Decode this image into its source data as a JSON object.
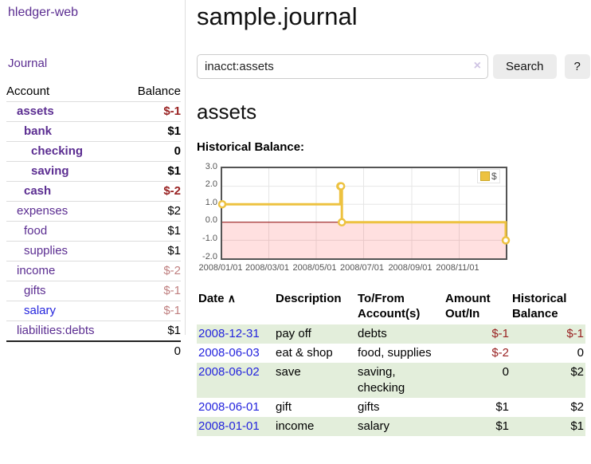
{
  "app": {
    "title": "hledger-web"
  },
  "sidebar": {
    "journal_label": "Journal",
    "accounts_table": {
      "headers": {
        "account": "Account",
        "balance": "Balance"
      },
      "rows": [
        {
          "name": "assets",
          "depth": 1,
          "bold": true,
          "balance": "$-1",
          "balance_style": "neg-strong"
        },
        {
          "name": "bank",
          "depth": 2,
          "bold": true,
          "balance": "$1",
          "balance_style": "normal"
        },
        {
          "name": "checking",
          "depth": 3,
          "bold": true,
          "balance": "0",
          "balance_style": "normal"
        },
        {
          "name": "saving",
          "depth": 3,
          "bold": true,
          "balance": "$1",
          "balance_style": "normal"
        },
        {
          "name": "cash",
          "depth": 2,
          "bold": true,
          "balance": "$-2",
          "balance_style": "neg-strong"
        },
        {
          "name": "expenses",
          "depth": 1,
          "bold": false,
          "balance": "$2",
          "balance_style": "normal"
        },
        {
          "name": "food",
          "depth": 2,
          "bold": false,
          "balance": "$1",
          "balance_style": "normal"
        },
        {
          "name": "supplies",
          "depth": 2,
          "bold": false,
          "balance": "$1",
          "balance_style": "normal"
        },
        {
          "name": "income",
          "depth": 1,
          "bold": false,
          "balance": "$-2",
          "balance_style": "neg-soft"
        },
        {
          "name": "gifts",
          "depth": 2,
          "bold": false,
          "balance": "$-1",
          "balance_style": "neg-soft"
        },
        {
          "name": "salary",
          "depth": 2,
          "bold": false,
          "balance": "$-1",
          "balance_style": "neg-soft",
          "link_style": "blue"
        },
        {
          "name": "liabilities:debts",
          "depth": 1,
          "bold": false,
          "balance": "$1",
          "balance_style": "normal"
        }
      ],
      "total": "0"
    }
  },
  "header": {
    "title": "sample.journal"
  },
  "search": {
    "value": "inacct:assets",
    "clear_icon": "×",
    "search_button_label": "Search",
    "help_button_label": "?"
  },
  "account_page": {
    "heading": "assets",
    "chart_heading": "Historical Balance:"
  },
  "chart_data": {
    "type": "line",
    "step": true,
    "title": "Historical Balance",
    "legend": {
      "position": "top-right",
      "entries": [
        {
          "label": "$",
          "color": "#edc240"
        }
      ]
    },
    "x_range_days": [
      0,
      365
    ],
    "ylim": [
      -2,
      3
    ],
    "x_ticks": [
      {
        "day": 0,
        "label": "2008/01/01"
      },
      {
        "day": 60,
        "label": "2008/03/01"
      },
      {
        "day": 121,
        "label": "2008/05/01"
      },
      {
        "day": 182,
        "label": "2008/07/01"
      },
      {
        "day": 244,
        "label": "2008/09/01"
      },
      {
        "day": 305,
        "label": "2008/11/01"
      }
    ],
    "y_ticks": [
      {
        "v": 3,
        "label": "3.0"
      },
      {
        "v": 2,
        "label": "2.0"
      },
      {
        "v": 1,
        "label": "1.0"
      },
      {
        "v": 0,
        "label": "0.0"
      },
      {
        "v": -1,
        "label": "-1.0"
      },
      {
        "v": -2,
        "label": "-2.0"
      }
    ],
    "series": [
      {
        "name": "$",
        "color": "#edc240",
        "points": [
          {
            "date": "2008-01-01",
            "day": 0,
            "value": 1
          },
          {
            "date": "2008-06-01",
            "day": 152,
            "value": 2
          },
          {
            "date": "2008-06-02",
            "day": 153,
            "value": 2
          },
          {
            "date": "2008-06-03",
            "day": 154,
            "value": 0
          },
          {
            "date": "2008-12-31",
            "day": 365,
            "value": -1
          }
        ]
      }
    ],
    "negative_region": {
      "below": 0,
      "color": "#ff0000",
      "opacity": 0.12
    },
    "zero_line_color": "#8b0000",
    "grid_color": "#e6e6e6",
    "border_color": "#545454"
  },
  "register_table": {
    "headers": {
      "date": "Date",
      "sort_icon": "∧",
      "description": "Description",
      "tofrom_line1": "To/From",
      "tofrom_line2": "Account(s)",
      "amount_line1": "Amount",
      "amount_line2": "Out/In",
      "balance_line1": "Historical",
      "balance_line2": "Balance"
    },
    "rows": [
      {
        "date": "2008-12-31",
        "description": "pay off",
        "accounts": "debts",
        "amount": "$-1",
        "amount_negative": true,
        "balance": "$-1",
        "balance_negative": true
      },
      {
        "date": "2008-06-03",
        "description": "eat & shop",
        "accounts": "food, supplies",
        "amount": "$-2",
        "amount_negative": true,
        "balance": "0",
        "balance_negative": false
      },
      {
        "date": "2008-06-02",
        "description": "save",
        "accounts": "saving, checking",
        "amount": "0",
        "amount_negative": false,
        "balance": "$2",
        "balance_negative": false
      },
      {
        "date": "2008-06-01",
        "description": "gift",
        "accounts": "gifts",
        "amount": "$1",
        "amount_negative": false,
        "balance": "$2",
        "balance_negative": false
      },
      {
        "date": "2008-01-01",
        "description": "income",
        "accounts": "salary",
        "amount": "$1",
        "amount_negative": false,
        "balance": "$1",
        "balance_negative": false
      }
    ]
  },
  "colors": {
    "link_purple": "#5b2d91",
    "link_blue": "#2424dd",
    "negative_strong": "#992222",
    "negative_soft": "#c08080",
    "row_green": "#e3eedb",
    "chart_series_yellow": "#edc240",
    "chart_negative_bg": "#fadcdc",
    "chart_zero_line": "#8b0000",
    "button_bg": "#ececec"
  }
}
